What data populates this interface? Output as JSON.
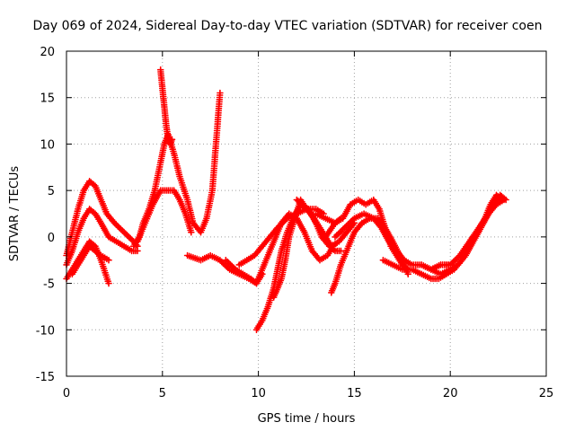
{
  "chart_data": {
    "type": "scatter",
    "title": "Day 069 of 2024, Sidereal Day-to-day VTEC variation (SDTVAR) for receiver coen",
    "xlabel": "GPS time / hours",
    "ylabel": "SDTVAR / TECUs",
    "xlim": [
      0,
      25
    ],
    "ylim": [
      -15,
      20
    ],
    "xticks": [
      0,
      5,
      10,
      15,
      20,
      25
    ],
    "yticks": [
      -15,
      -10,
      -5,
      0,
      5,
      10,
      15,
      20
    ],
    "grid": true,
    "marker": "+",
    "color": "#ff0000",
    "series": [
      {
        "name": "track-1",
        "x": [
          0.0,
          0.3,
          0.6,
          0.9,
          1.2,
          1.5,
          1.8,
          2.1,
          2.5,
          3.0,
          3.5,
          3.7
        ],
        "y": [
          -2.0,
          0.5,
          3.0,
          5.0,
          6.0,
          5.5,
          4.0,
          2.5,
          1.5,
          0.5,
          -0.5,
          -1.0
        ]
      },
      {
        "name": "track-2",
        "x": [
          0.0,
          0.3,
          0.6,
          0.9,
          1.2,
          1.5,
          1.8,
          2.2,
          2.6,
          3.0,
          3.4,
          3.7
        ],
        "y": [
          -3.0,
          -1.5,
          0.5,
          2.0,
          3.0,
          2.5,
          1.5,
          0.0,
          -0.5,
          -1.0,
          -1.5,
          -1.5
        ]
      },
      {
        "name": "track-3",
        "x": [
          0.0,
          0.3,
          0.6,
          0.9,
          1.2,
          1.5,
          1.8,
          2.2
        ],
        "y": [
          -4.5,
          -3.5,
          -2.5,
          -1.5,
          -0.5,
          -1.0,
          -2.5,
          -5.0
        ]
      },
      {
        "name": "track-4",
        "x": [
          0.3,
          0.6,
          0.9,
          1.2,
          1.5,
          1.8,
          2.2
        ],
        "y": [
          -4.0,
          -3.0,
          -2.0,
          -1.0,
          -1.5,
          -2.0,
          -2.5
        ]
      },
      {
        "name": "track-5",
        "x": [
          3.5,
          3.8,
          4.0,
          4.3,
          4.6,
          4.9,
          5.1,
          5.3,
          5.6,
          5.9,
          6.3,
          6.6,
          7.0,
          7.3,
          7.6,
          8.0
        ],
        "y": [
          -1.0,
          0.0,
          1.5,
          3.0,
          5.0,
          8.0,
          10.0,
          11.0,
          9.0,
          6.5,
          4.0,
          1.5,
          0.5,
          2.0,
          5.0,
          15.5
        ]
      },
      {
        "name": "track-6",
        "x": [
          3.7,
          4.1,
          4.5,
          4.9,
          5.2,
          5.6,
          5.9,
          6.2,
          6.5
        ],
        "y": [
          -0.5,
          1.5,
          3.5,
          5.0,
          5.0,
          5.0,
          4.0,
          2.5,
          0.5
        ]
      },
      {
        "name": "track-7",
        "x": [
          4.9,
          5.0,
          5.1,
          5.2,
          5.3,
          5.4,
          5.5
        ],
        "y": [
          18.0,
          16.0,
          14.0,
          12.0,
          10.5,
          10.0,
          10.5
        ]
      },
      {
        "name": "track-8",
        "x": [
          6.3,
          7.0,
          7.5,
          8.0,
          8.5,
          9.0,
          9.5,
          9.9,
          10.2
        ],
        "y": [
          -2.0,
          -2.5,
          -2.0,
          -2.5,
          -3.5,
          -4.0,
          -4.5,
          -5.0,
          -4.0
        ]
      },
      {
        "name": "track-9",
        "x": [
          8.3,
          8.8,
          9.2,
          9.6,
          9.9
        ],
        "y": [
          -2.5,
          -3.5,
          -4.0,
          -4.5,
          -5.0
        ]
      },
      {
        "name": "track-10",
        "x": [
          9.9,
          10.2,
          10.5,
          10.8,
          11.0,
          11.2,
          11.5,
          11.8,
          12.2,
          12.6,
          13.0,
          13.5,
          14.0,
          14.3
        ],
        "y": [
          -10.0,
          -9.0,
          -7.5,
          -5.5,
          -3.5,
          -1.5,
          0.5,
          2.0,
          3.5,
          3.0,
          1.5,
          0.0,
          1.5,
          2.0
        ]
      },
      {
        "name": "track-11",
        "x": [
          10.0,
          10.3,
          10.6,
          10.9,
          11.2,
          11.6,
          12.0,
          12.4,
          12.8,
          13.2,
          13.6,
          13.9
        ],
        "y": [
          -4.5,
          -3.0,
          -1.5,
          0.0,
          1.5,
          2.5,
          2.0,
          0.5,
          -1.5,
          -2.5,
          -2.0,
          -1.0
        ]
      },
      {
        "name": "track-12",
        "x": [
          10.8,
          11.0,
          11.2,
          11.4,
          11.6,
          11.9,
          12.2,
          12.5,
          12.9,
          13.3,
          13.7,
          14.0,
          14.3
        ],
        "y": [
          -6.5,
          -5.5,
          -4.5,
          -2.5,
          0.0,
          2.0,
          4.0,
          3.0,
          2.0,
          0.0,
          -1.0,
          -1.5,
          -1.5
        ]
      },
      {
        "name": "track-13",
        "x": [
          9.0,
          9.4,
          9.8,
          10.2,
          10.6,
          11.0,
          11.5,
          12.0,
          12.5,
          13.0,
          13.4
        ],
        "y": [
          -3.0,
          -2.5,
          -2.0,
          -1.0,
          0.0,
          1.0,
          2.0,
          2.5,
          3.0,
          3.0,
          2.5
        ]
      },
      {
        "name": "track-14",
        "x": [
          12.0,
          12.3,
          12.6,
          12.9,
          13.2,
          13.5,
          13.8,
          14.2,
          14.6,
          15.0
        ],
        "y": [
          4.0,
          3.5,
          3.0,
          2.0,
          1.0,
          0.0,
          -1.0,
          -0.5,
          0.5,
          1.5
        ]
      },
      {
        "name": "track-15",
        "x": [
          13.0,
          13.5,
          14.0,
          14.4,
          14.8,
          15.2,
          15.6,
          16.0,
          16.3,
          16.6,
          16.9,
          17.2,
          17.5,
          17.8
        ],
        "y": [
          2.5,
          2.0,
          1.5,
          2.0,
          3.5,
          4.0,
          3.5,
          4.0,
          3.0,
          1.0,
          -1.0,
          -2.0,
          -3.0,
          -3.5
        ]
      },
      {
        "name": "track-16",
        "x": [
          13.8,
          14.0,
          14.3,
          14.7,
          15.0,
          15.4,
          15.8,
          16.2,
          16.6,
          17.0,
          17.5,
          17.8
        ],
        "y": [
          -6.0,
          -5.0,
          -3.0,
          -1.0,
          0.5,
          1.5,
          2.0,
          2.0,
          1.0,
          -0.5,
          -2.5,
          -4.0
        ]
      },
      {
        "name": "track-17",
        "x": [
          14.0,
          14.5,
          15.0,
          15.5,
          16.0,
          16.4,
          16.8,
          17.2,
          17.6,
          18.0,
          18.5,
          19.0,
          19.5,
          20.0
        ],
        "y": [
          0.0,
          1.0,
          2.0,
          2.5,
          2.0,
          1.0,
          -0.5,
          -1.5,
          -2.5,
          -3.0,
          -3.0,
          -3.5,
          -3.0,
          -3.0
        ]
      },
      {
        "name": "track-18",
        "x": [
          16.5,
          17.0,
          17.5,
          18.0,
          18.5,
          19.0,
          19.4,
          19.8,
          20.2,
          20.6,
          21.0,
          21.4,
          21.8,
          22.1,
          22.4,
          22.7
        ],
        "y": [
          -2.5,
          -3.0,
          -3.5,
          -3.5,
          -4.0,
          -4.5,
          -4.5,
          -4.0,
          -3.5,
          -2.5,
          -1.0,
          0.5,
          2.0,
          3.5,
          4.5,
          4.0
        ]
      },
      {
        "name": "track-19",
        "x": [
          18.5,
          19.0,
          19.5,
          20.0,
          20.5,
          21.0,
          21.5,
          22.0,
          22.4,
          22.8
        ],
        "y": [
          -3.0,
          -3.5,
          -3.0,
          -3.0,
          -2.0,
          -0.5,
          1.0,
          2.5,
          3.5,
          4.0
        ]
      },
      {
        "name": "track-20",
        "x": [
          19.0,
          19.5,
          20.0,
          20.4,
          20.8,
          21.2,
          21.6,
          22.0,
          22.3,
          22.6,
          22.9
        ],
        "y": [
          -3.5,
          -4.0,
          -3.5,
          -3.0,
          -2.0,
          -0.5,
          1.0,
          2.5,
          3.5,
          4.5,
          4.0
        ]
      }
    ]
  }
}
